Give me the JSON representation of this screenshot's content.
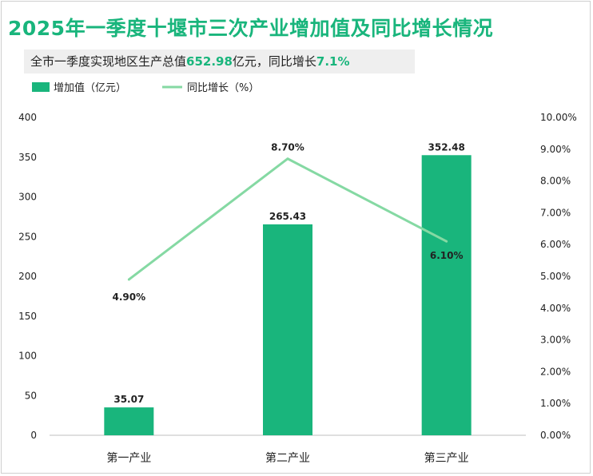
{
  "header": {
    "title": "2025年一季度十堰市三次产业增加值及同比增长情况",
    "subtitle_prefix": "全市一季度实现地区生产总值",
    "subtitle_gdp": "652.98",
    "subtitle_unit": "亿元，同比增长",
    "subtitle_growth": "7.1%"
  },
  "colors": {
    "bar": "#19b57c",
    "line": "#85d9a3",
    "title": "#19b57c"
  },
  "chart_data": {
    "type": "bar",
    "categories": [
      "第一产业",
      "第二产业",
      "第三产业"
    ],
    "series": [
      {
        "name": "增加值（亿元）",
        "type": "bar",
        "axis": "left",
        "values": [
          35.07,
          265.43,
          352.48
        ],
        "labels": [
          "35.07",
          "265.43",
          "352.48"
        ]
      },
      {
        "name": "同比增长（%）",
        "type": "line",
        "axis": "right",
        "values": [
          4.9,
          8.7,
          6.1
        ],
        "labels": [
          "4.90%",
          "8.70%",
          "6.10%"
        ]
      }
    ],
    "y_left": {
      "min": 0,
      "max": 400,
      "ticks": [
        "0",
        "50",
        "100",
        "150",
        "200",
        "250",
        "300",
        "350",
        "400"
      ]
    },
    "y_right": {
      "min": 0,
      "max": 10,
      "ticks": [
        "0.00%",
        "1.00%",
        "2.00%",
        "3.00%",
        "4.00%",
        "5.00%",
        "6.00%",
        "7.00%",
        "8.00%",
        "9.00%",
        "10.00%"
      ]
    },
    "legend_position": "top-left",
    "grid": false
  }
}
